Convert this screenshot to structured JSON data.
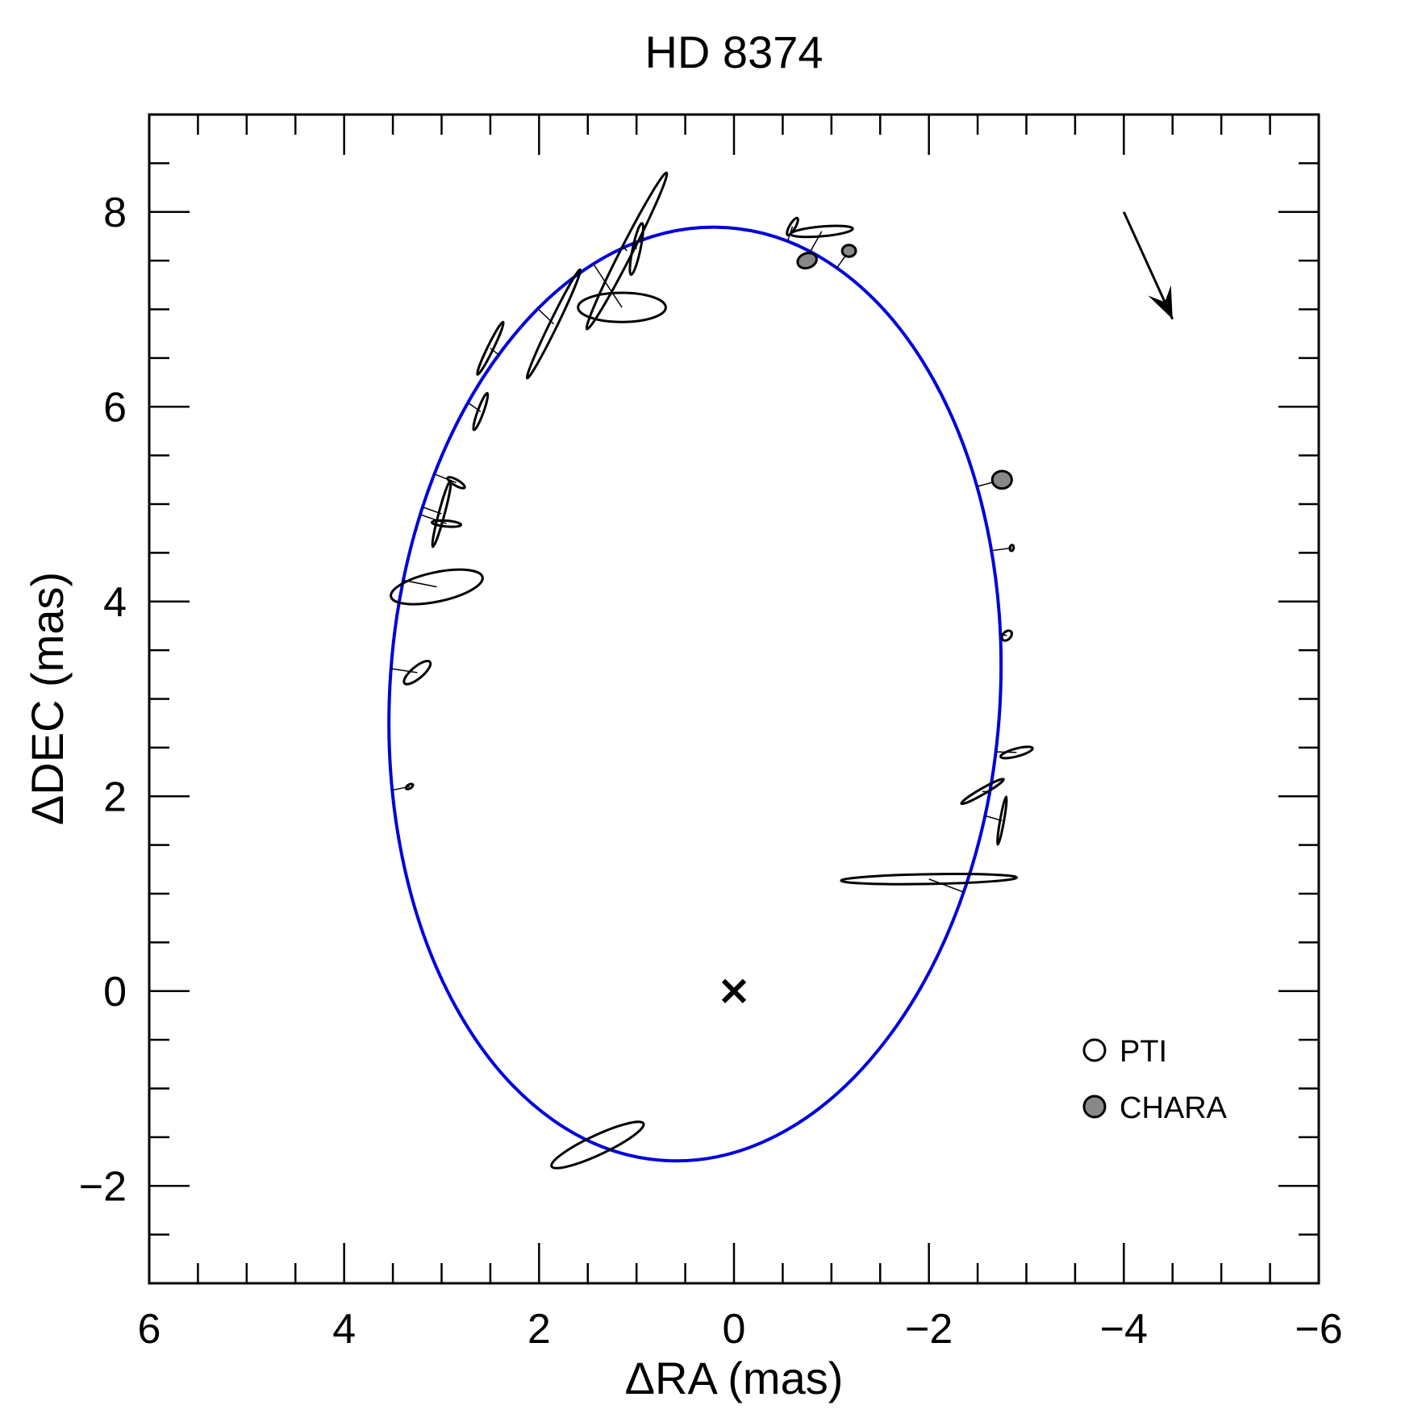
{
  "chart_data": {
    "type": "scatter",
    "title": "HD 8374",
    "xlabel": "ΔRA (mas)",
    "ylabel": "ΔDEC (mas)",
    "xlim": [
      6,
      -6
    ],
    "ylim": [
      -3,
      9
    ],
    "x_axis_reversed": true,
    "x_ticks": [
      6,
      4,
      2,
      0,
      -2,
      -4,
      -6
    ],
    "x_tick_labels": [
      "6",
      "4",
      "2",
      "0",
      "−2",
      "−4",
      "−6"
    ],
    "y_ticks": [
      -2,
      0,
      2,
      4,
      6,
      8
    ],
    "y_tick_labels": [
      "−2",
      "0",
      "2",
      "4",
      "6",
      "8"
    ],
    "grid": false,
    "legend_position": "bottom-right",
    "legend": [
      {
        "label": "PTI",
        "marker": "open-ellipse"
      },
      {
        "label": "CHARA",
        "marker": "filled-ellipse"
      }
    ],
    "colors": {
      "orbit": "#0000dd",
      "chara_fill": "#888888",
      "markers": "#000000"
    },
    "primary_star": {
      "x": 0,
      "y": 0,
      "marker": "x"
    },
    "orbit": {
      "center": [
        0.4,
        3.05
      ],
      "semi_axis_ra": 3.13,
      "semi_axis_dec": 4.8,
      "rotation_deg": 4,
      "color": "#0000dd"
    },
    "motion_arrow": {
      "from": [
        -4.0,
        8.0
      ],
      "to": [
        -4.5,
        6.9
      ]
    },
    "series": [
      {
        "name": "PTI",
        "points": [
          {
            "x": 1.15,
            "y": 7.02,
            "sx": 0.45,
            "sy": 0.15,
            "theta": 0
          },
          {
            "x": 1.1,
            "y": 7.6,
            "sx": 0.9,
            "sy": 0.06,
            "theta": 63
          },
          {
            "x": 1.0,
            "y": 7.62,
            "sx": 0.27,
            "sy": 0.04,
            "theta": 78
          },
          {
            "x": 1.85,
            "y": 6.85,
            "sx": 0.62,
            "sy": 0.04,
            "theta": 64
          },
          {
            "x": 2.5,
            "y": 6.6,
            "sx": 0.3,
            "sy": 0.03,
            "theta": 64
          },
          {
            "x": 2.6,
            "y": 5.95,
            "sx": 0.2,
            "sy": 0.03,
            "theta": 70
          },
          {
            "x": 2.85,
            "y": 5.22,
            "sx": 0.1,
            "sy": 0.03,
            "theta": -30
          },
          {
            "x": 3.0,
            "y": 4.9,
            "sx": 0.35,
            "sy": 0.03,
            "theta": 75
          },
          {
            "x": 2.95,
            "y": 4.8,
            "sx": 0.15,
            "sy": 0.03,
            "theta": -5
          },
          {
            "x": 3.05,
            "y": 4.15,
            "sx": 0.48,
            "sy": 0.15,
            "theta": 12
          },
          {
            "x": 3.25,
            "y": 3.27,
            "sx": 0.17,
            "sy": 0.06,
            "theta": 40
          },
          {
            "x": 3.33,
            "y": 2.1,
            "sx": 0.04,
            "sy": 0.02,
            "theta": 30
          },
          {
            "x": 1.4,
            "y": -1.58,
            "sx": 0.52,
            "sy": 0.1,
            "theta": 25
          },
          {
            "x": -0.9,
            "y": 7.8,
            "sx": 0.32,
            "sy": 0.05,
            "theta": 5
          },
          {
            "x": -0.6,
            "y": 7.85,
            "sx": 0.1,
            "sy": 0.03,
            "theta": 60
          },
          {
            "x": -2.85,
            "y": 4.55,
            "sx": 0.03,
            "sy": 0.02,
            "theta": 80
          },
          {
            "x": -2.8,
            "y": 3.65,
            "sx": 0.06,
            "sy": 0.04,
            "theta": 45
          },
          {
            "x": -2.9,
            "y": 2.45,
            "sx": 0.17,
            "sy": 0.04,
            "theta": 15
          },
          {
            "x": -2.55,
            "y": 2.05,
            "sx": 0.25,
            "sy": 0.03,
            "theta": 30
          },
          {
            "x": -2.75,
            "y": 1.75,
            "sx": 0.25,
            "sy": 0.02,
            "theta": 80
          },
          {
            "x": -2.0,
            "y": 1.15,
            "sx": 0.9,
            "sy": 0.05,
            "theta": 1
          }
        ]
      },
      {
        "name": "CHARA",
        "points": [
          {
            "x": -0.75,
            "y": 7.5,
            "sx": 0.1,
            "sy": 0.075,
            "theta": 20
          },
          {
            "x": -1.18,
            "y": 7.6,
            "sx": 0.07,
            "sy": 0.06,
            "theta": 0
          },
          {
            "x": -2.75,
            "y": 5.25,
            "sx": 0.1,
            "sy": 0.09,
            "theta": 0
          }
        ]
      }
    ]
  }
}
